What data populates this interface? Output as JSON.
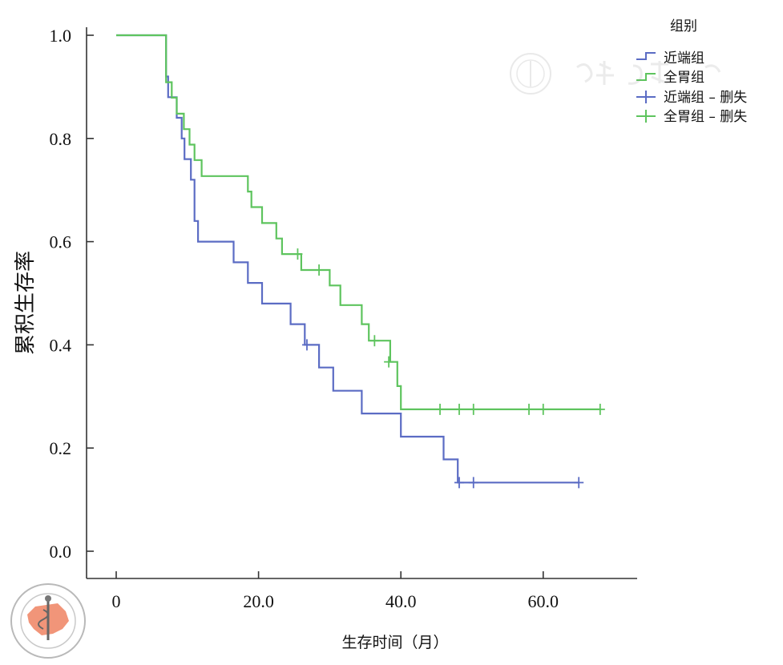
{
  "chart_data": {
    "type": "line",
    "step": true,
    "ylabel": "累积生存率",
    "xlabel": "生存时间（月）",
    "ylim": [
      0,
      1.0
    ],
    "xlim": [
      -3,
      73
    ],
    "yticks": [
      "0.0",
      "0.2",
      "0.4",
      "0.6",
      "0.8",
      "1.0"
    ],
    "xticks": [
      "0",
      "20.0",
      "40.0",
      "60.0"
    ],
    "legend": {
      "title": "组别",
      "position": "top-right",
      "entries": [
        "近端组",
        "全胃组",
        "近端组 – 删失",
        "全胃组 – 删失"
      ]
    },
    "series": [
      {
        "name": "近端组",
        "color": "#5b6cc4",
        "steps": [
          [
            0,
            1.0
          ],
          [
            7,
            0.92
          ],
          [
            7.3,
            0.88
          ],
          [
            8.5,
            0.84
          ],
          [
            9.2,
            0.8
          ],
          [
            9.6,
            0.76
          ],
          [
            10.5,
            0.72
          ],
          [
            11,
            0.64
          ],
          [
            11.5,
            0.6
          ],
          [
            16.5,
            0.56
          ],
          [
            18.5,
            0.52
          ],
          [
            20.5,
            0.48
          ],
          [
            24.5,
            0.44
          ],
          [
            26.5,
            0.4
          ],
          [
            28.5,
            0.356
          ],
          [
            30.5,
            0.311
          ],
          [
            34.5,
            0.267
          ],
          [
            40,
            0.222
          ],
          [
            46,
            0.178
          ],
          [
            48,
            0.133
          ]
        ],
        "end_x": 65,
        "censored": [
          [
            26.8,
            0.4
          ],
          [
            48.2,
            0.133
          ],
          [
            50.2,
            0.133
          ],
          [
            65,
            0.133
          ]
        ]
      },
      {
        "name": "全胃组",
        "color": "#5ec45e",
        "steps": [
          [
            0,
            1.0
          ],
          [
            7,
            0.909
          ],
          [
            7.8,
            0.879
          ],
          [
            8.5,
            0.848
          ],
          [
            9.5,
            0.818
          ],
          [
            10.3,
            0.788
          ],
          [
            11,
            0.758
          ],
          [
            12,
            0.727
          ],
          [
            18.5,
            0.697
          ],
          [
            19,
            0.667
          ],
          [
            20.5,
            0.636
          ],
          [
            22.5,
            0.606
          ],
          [
            23.3,
            0.576
          ],
          [
            26,
            0.545
          ],
          [
            30,
            0.515
          ],
          [
            31.5,
            0.477
          ],
          [
            34.5,
            0.44
          ],
          [
            35.5,
            0.408
          ],
          [
            38.5,
            0.367
          ],
          [
            39.5,
            0.32
          ],
          [
            40,
            0.275
          ]
        ],
        "end_x": 68,
        "censored": [
          [
            25.5,
            0.576
          ],
          [
            28.5,
            0.545
          ],
          [
            36.3,
            0.408
          ],
          [
            38.3,
            0.367
          ],
          [
            45.5,
            0.275
          ],
          [
            48.2,
            0.275
          ],
          [
            50.2,
            0.275
          ],
          [
            58,
            0.275
          ],
          [
            60,
            0.275
          ],
          [
            68,
            0.275
          ]
        ]
      }
    ]
  }
}
